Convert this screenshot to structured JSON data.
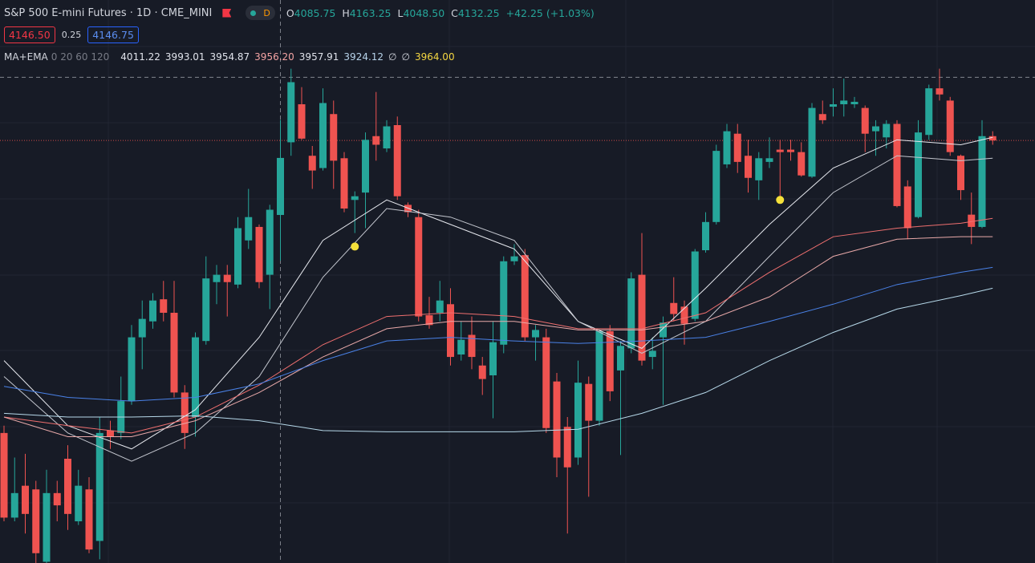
{
  "header": {
    "title": "S&P 500 E-mini Futures · 1D · CME_MINI",
    "interval": "D",
    "ohlc": [
      {
        "label": "O",
        "value": "4085.75"
      },
      {
        "label": "H",
        "value": "4163.25"
      },
      {
        "label": "L",
        "value": "4048.50"
      },
      {
        "label": "C",
        "value": "4132.25"
      }
    ],
    "change": "+42.25 (+1.03%)",
    "sell": "4146.50",
    "spread": "0.25",
    "buy": "4146.75"
  },
  "indicator": {
    "name": "MA+EMA",
    "params": "0 20 60 120",
    "values": [
      {
        "text": "4011.22",
        "color": "#e0e3eb"
      },
      {
        "text": "3993.01",
        "color": "#e0e3eb"
      },
      {
        "text": "3954.87",
        "color": "#e0e3eb"
      },
      {
        "text": "3956.20",
        "color": "#f4a3a3"
      },
      {
        "text": "3957.91",
        "color": "#e0e3eb"
      },
      {
        "text": "3924.12",
        "color": "#b7d3ea"
      },
      {
        "text": "∅",
        "color": "#d1d4dc"
      },
      {
        "text": "∅",
        "color": "#d1d4dc"
      },
      {
        "text": "3964.00",
        "color": "#f5d742"
      }
    ]
  },
  "chart_data": {
    "type": "candlestick",
    "up_color": "#26a69a",
    "down_color": "#ef5350",
    "ylim": [
      3802,
      4261
    ],
    "categories": [
      null,
      null,
      null,
      null,
      null,
      null,
      null,
      null,
      null,
      null,
      null,
      null,
      null,
      null,
      null,
      null,
      null,
      null,
      null,
      null,
      null,
      null,
      null,
      null,
      null,
      null,
      null,
      null,
      null,
      null,
      null,
      null,
      null,
      null,
      null,
      null,
      null,
      null,
      null,
      null,
      null,
      null,
      null,
      null,
      null,
      null,
      null,
      null,
      null,
      null,
      null,
      null,
      null,
      null,
      null,
      null,
      null,
      null,
      null,
      null,
      null,
      null,
      null,
      null,
      null,
      null,
      null,
      null,
      null,
      null,
      null,
      null,
      null,
      null,
      null,
      null,
      null,
      null,
      null,
      null,
      null,
      null,
      null,
      null,
      null,
      null,
      null,
      null,
      null,
      null,
      null,
      null,
      null,
      null
    ],
    "ohlc": [
      [
        3908,
        3914,
        3836,
        3839
      ],
      [
        3839,
        3888,
        3836,
        3859
      ],
      [
        3865,
        3891,
        3826,
        3842
      ],
      [
        3862,
        3869,
        3802,
        3810
      ],
      [
        3803,
        3878,
        3802,
        3859
      ],
      [
        3859,
        3869,
        3836,
        3849
      ],
      [
        3887,
        3898,
        3829,
        3842
      ],
      [
        3836,
        3878,
        3833,
        3865
      ],
      [
        3862,
        3872,
        3810,
        3813
      ],
      [
        3820,
        3921,
        3805,
        3908
      ],
      [
        3910,
        3918,
        3895,
        3905
      ],
      [
        3908,
        3954,
        3903,
        3934
      ],
      [
        3934,
        3996,
        3931,
        3986
      ],
      [
        3986,
        4016,
        3960,
        4001
      ],
      [
        3999,
        4022,
        3993,
        4016
      ],
      [
        4017,
        4032,
        3999,
        4006
      ],
      [
        4006,
        4032,
        3937,
        3941
      ],
      [
        3941,
        3947,
        3895,
        3908
      ],
      [
        3921,
        3990,
        3905,
        3986
      ],
      [
        3983,
        4052,
        3980,
        4034
      ],
      [
        4031,
        4045,
        4013,
        4037
      ],
      [
        4037,
        4045,
        4003,
        4031
      ],
      [
        4029,
        4084,
        4026,
        4075
      ],
      [
        4065,
        4107,
        4058,
        4084
      ],
      [
        4076,
        4078,
        4026,
        4031
      ],
      [
        4037,
        4094,
        4009,
        4090
      ],
      [
        4085.75,
        4163.25,
        4048.5,
        4132.25
      ],
      [
        4145,
        4205,
        4134,
        4194
      ],
      [
        4176,
        4190,
        4147,
        4148
      ],
      [
        4134,
        4142,
        4107,
        4122
      ],
      [
        4124,
        4189,
        4122,
        4177
      ],
      [
        4168,
        4179,
        4107,
        4130
      ],
      [
        4132,
        4137,
        4088,
        4091
      ],
      [
        4098,
        4105,
        4071,
        4101
      ],
      [
        4104,
        4153,
        4075,
        4147
      ],
      [
        4150,
        4186,
        4130,
        4143
      ],
      [
        4140,
        4163,
        4137,
        4158
      ],
      [
        4159,
        4166,
        4098,
        4101
      ],
      [
        4094,
        4096,
        4084,
        4088
      ],
      [
        4084,
        4090,
        3999,
        4003
      ],
      [
        4004,
        4019,
        3993,
        3996
      ],
      [
        4006,
        4032,
        3999,
        4016
      ],
      [
        4013,
        4026,
        3963,
        3970
      ],
      [
        3972,
        3999,
        3967,
        3984
      ],
      [
        3988,
        4003,
        3960,
        3970
      ],
      [
        3963,
        3970,
        3939,
        3952
      ],
      [
        3955,
        3999,
        3920,
        3982
      ],
      [
        3980,
        4052,
        3973,
        4048
      ],
      [
        4048,
        4062,
        4045,
        4052
      ],
      [
        4053,
        4058,
        3983,
        3986
      ],
      [
        3986,
        3996,
        3967,
        3992
      ],
      [
        3986,
        3993,
        3908,
        3912
      ],
      [
        3950,
        3957,
        3872,
        3888
      ],
      [
        3913,
        3921,
        3826,
        3880
      ],
      [
        3888,
        3967,
        3882,
        3949
      ],
      [
        3948,
        3954,
        3856,
        3918
      ],
      [
        3918,
        3993,
        3914,
        3991
      ],
      [
        3991,
        3996,
        3934,
        3942
      ],
      [
        3959,
        3983,
        3890,
        3979
      ],
      [
        3977,
        4039,
        3973,
        4034
      ],
      [
        4037,
        4071,
        3963,
        3967
      ],
      [
        3970,
        3986,
        3960,
        3975
      ],
      [
        3986,
        4003,
        3931,
        3998
      ],
      [
        4014,
        4035,
        3999,
        4005
      ],
      [
        4011,
        4016,
        3980,
        3997
      ],
      [
        4001,
        4058,
        3999,
        4056
      ],
      [
        4057,
        4088,
        4055,
        4080
      ],
      [
        4080,
        4143,
        4078,
        4138
      ],
      [
        4127,
        4160,
        4124,
        4154
      ],
      [
        4152,
        4160,
        4120,
        4129
      ],
      [
        4134,
        4147,
        4104,
        4116
      ],
      [
        4114,
        4137,
        4098,
        4132
      ],
      [
        4129,
        4149,
        4124,
        4132
      ],
      [
        4139,
        4147,
        4098,
        4137
      ],
      [
        4139,
        4147,
        4130,
        4137
      ],
      [
        4137,
        4145,
        4117,
        4118
      ],
      [
        4117,
        4177,
        4116,
        4173
      ],
      [
        4168,
        4179,
        4160,
        4163
      ],
      [
        4174,
        4189,
        4166,
        4176
      ],
      [
        4176,
        4197,
        4166,
        4179
      ],
      [
        4176,
        4182,
        4173,
        4178
      ],
      [
        4173,
        4175,
        4137,
        4152
      ],
      [
        4154,
        4163,
        4134,
        4158
      ],
      [
        4149,
        4163,
        4140,
        4160
      ],
      [
        4160,
        4163,
        4092,
        4093
      ],
      [
        4109,
        4114,
        4066,
        4075
      ],
      [
        4084,
        4163,
        4083,
        4153
      ],
      [
        4151,
        4192,
        4147,
        4189
      ],
      [
        4189,
        4205,
        4179,
        4184
      ],
      [
        4179,
        4182,
        4134,
        4137
      ],
      [
        4134,
        4135,
        4098,
        4106
      ],
      [
        4086,
        4104,
        4062,
        4076
      ],
      [
        4076,
        4163,
        4075,
        4150
      ],
      [
        4150,
        4154,
        4143,
        4146.5
      ]
    ],
    "line_x": [
      0,
      6,
      12,
      18,
      24,
      30,
      36,
      42,
      48,
      54,
      60,
      66,
      72,
      78,
      84,
      90,
      93
    ],
    "lines": [
      {
        "color": "#e6e8ee",
        "values": [
          3967,
          3914,
          3895,
          3927,
          3986,
          4065,
          4098,
          4078,
          4058,
          3999,
          3977,
          4026,
          4078,
          4124,
          4147,
          4143,
          4149
        ]
      },
      {
        "color": "#c3c6ce",
        "values": [
          3954,
          3908,
          3885,
          3908,
          3954,
          4035,
          4091,
          4084,
          4065,
          3999,
          3973,
          3999,
          4052,
          4104,
          4134,
          4130,
          4132
        ]
      },
      {
        "color": "#ef6f6f",
        "values": [
          3921,
          3914,
          3908,
          3921,
          3947,
          3980,
          4003,
          4006,
          4003,
          3993,
          3993,
          4006,
          4039,
          4068,
          4075,
          4079,
          4083
        ]
      },
      {
        "color": "#e9a9a9",
        "values": [
          3921,
          3905,
          3905,
          3918,
          3941,
          3970,
          3993,
          3999,
          3999,
          3992,
          3992,
          3999,
          4019,
          4052,
          4066,
          4068,
          4068
        ]
      },
      {
        "color": "#4a82e8",
        "values": [
          3946,
          3937,
          3934,
          3937,
          3948,
          3967,
          3983,
          3986,
          3983,
          3981,
          3983,
          3986,
          3999,
          4013,
          4029,
          4039,
          4043
        ]
      },
      {
        "color": "#b7d9ea",
        "values": [
          3924,
          3921,
          3921,
          3922,
          3918,
          3910,
          3909,
          3909,
          3909,
          3911,
          3924,
          3941,
          3967,
          3990,
          4009,
          4020,
          4026
        ]
      }
    ],
    "price_lines": [
      {
        "value": 4146.5,
        "color": "#ef5350",
        "style": "dotted"
      },
      {
        "value": 4198,
        "color": "#9598a1",
        "style": "dashed"
      }
    ],
    "crosshair_index": 26,
    "markers": {
      "color": "#f5e13a",
      "x": [
        33,
        73
      ],
      "values": [
        4060,
        4098
      ]
    }
  }
}
